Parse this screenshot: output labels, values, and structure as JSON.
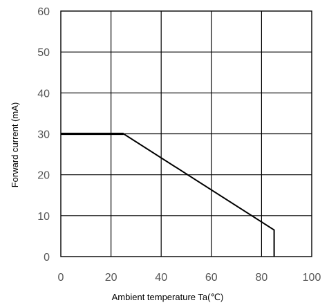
{
  "chart_data": {
    "type": "line",
    "title": "",
    "xlabel": "Ambient temperature Ta(℃)",
    "ylabel": "Forward current (mA)",
    "xlim": [
      0,
      100
    ],
    "ylim": [
      0,
      60
    ],
    "x_ticks": [
      "0",
      "20",
      "40",
      "60",
      "80",
      "100"
    ],
    "y_ticks": [
      "0",
      "10",
      "20",
      "30",
      "40",
      "50",
      "60"
    ],
    "grid": true,
    "legend": "none",
    "series": [
      {
        "x": [
          0,
          25,
          85,
          85
        ],
        "y": [
          30,
          30,
          6.5,
          0
        ],
        "color": "#000000"
      }
    ]
  }
}
